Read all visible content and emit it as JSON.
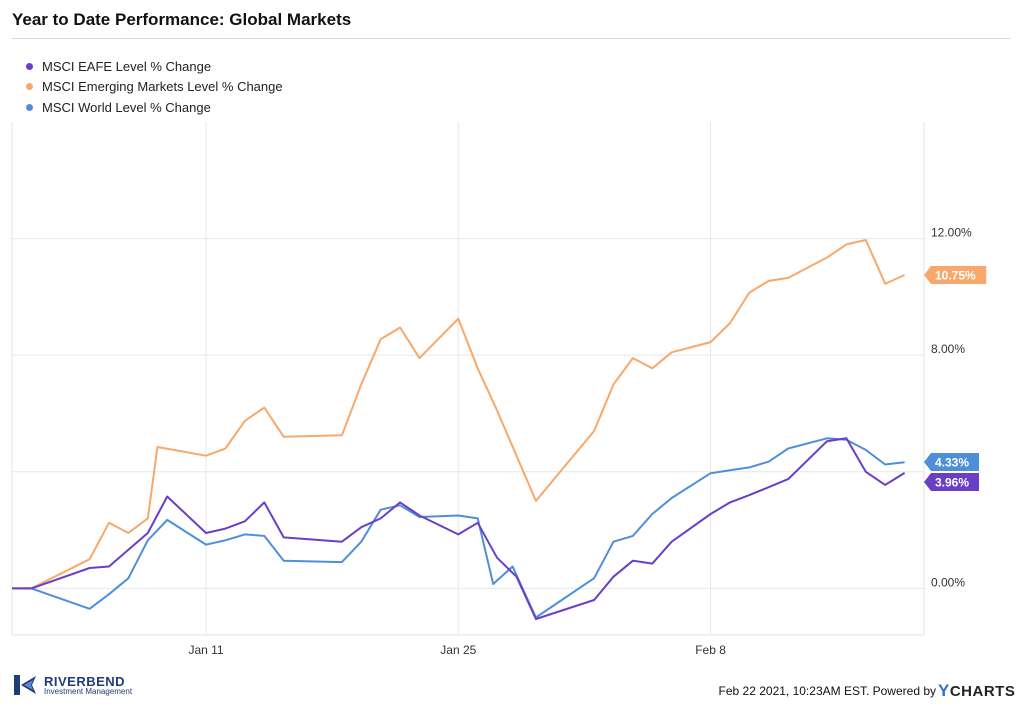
{
  "title": "Year to Date Performance: Global Markets",
  "chart_data": {
    "type": "line",
    "ylim": [
      -1.6,
      16.0
    ],
    "yticks": [
      0,
      4,
      8,
      12
    ],
    "ytick_labels": [
      "0.00%",
      "",
      "8.00%",
      "12.00%"
    ],
    "x_range": [
      0,
      47
    ],
    "xticks": [
      10,
      23,
      36
    ],
    "xtick_labels": [
      "Jan 11",
      "Jan 25",
      "Feb 8"
    ],
    "grid": true,
    "legend_position": "top-left",
    "series": [
      {
        "name": "MSCI EAFE Level % Change",
        "color": "#6a3fc7",
        "end_label": "3.96%",
        "end_value": 3.96,
        "points": [
          [
            0,
            0
          ],
          [
            1,
            0
          ],
          [
            4,
            0.7
          ],
          [
            5,
            0.75
          ],
          [
            7,
            1.9
          ],
          [
            8,
            3.15
          ],
          [
            10,
            1.9
          ],
          [
            11,
            2.05
          ],
          [
            12,
            2.3
          ],
          [
            13,
            2.95
          ],
          [
            14,
            1.75
          ],
          [
            17,
            1.6
          ],
          [
            18,
            2.1
          ],
          [
            19,
            2.4
          ],
          [
            20,
            2.95
          ],
          [
            21,
            2.5
          ],
          [
            23,
            1.85
          ],
          [
            24,
            2.25
          ],
          [
            25,
            1.05
          ],
          [
            26,
            0.4
          ],
          [
            27,
            -1.05
          ],
          [
            30,
            -0.4
          ],
          [
            31,
            0.4
          ],
          [
            32,
            0.95
          ],
          [
            33,
            0.85
          ],
          [
            34,
            1.6
          ],
          [
            36,
            2.55
          ],
          [
            37,
            2.95
          ],
          [
            38,
            3.2
          ],
          [
            40,
            3.75
          ],
          [
            42,
            5.05
          ],
          [
            43,
            5.15
          ],
          [
            44,
            4.0
          ],
          [
            45,
            3.55
          ],
          [
            46,
            3.96
          ]
        ]
      },
      {
        "name": "MSCI Emerging Markets Level % Change",
        "color": "#f7a86a",
        "end_label": "10.75%",
        "end_value": 10.75,
        "points": [
          [
            0,
            0
          ],
          [
            1,
            0
          ],
          [
            4,
            1.0
          ],
          [
            5,
            2.25
          ],
          [
            6,
            1.9
          ],
          [
            7,
            2.4
          ],
          [
            7.5,
            4.85
          ],
          [
            10,
            4.55
          ],
          [
            11,
            4.8
          ],
          [
            12,
            5.75
          ],
          [
            13,
            6.2
          ],
          [
            14,
            5.2
          ],
          [
            17,
            5.25
          ],
          [
            18,
            7.0
          ],
          [
            19,
            8.55
          ],
          [
            20,
            8.95
          ],
          [
            21,
            7.9
          ],
          [
            23,
            9.25
          ],
          [
            24,
            7.55
          ],
          [
            25,
            6.1
          ],
          [
            27,
            3.0
          ],
          [
            30,
            5.4
          ],
          [
            31,
            7.0
          ],
          [
            32,
            7.9
          ],
          [
            33,
            7.55
          ],
          [
            34,
            8.1
          ],
          [
            36,
            8.45
          ],
          [
            37,
            9.1
          ],
          [
            38,
            10.15
          ],
          [
            39,
            10.55
          ],
          [
            40,
            10.65
          ],
          [
            42,
            11.35
          ],
          [
            43,
            11.8
          ],
          [
            44,
            11.95
          ],
          [
            45,
            10.45
          ],
          [
            46,
            10.75
          ]
        ]
      },
      {
        "name": "MSCI World Level % Change",
        "color": "#4f8fd9",
        "end_label": "4.33%",
        "end_value": 4.33,
        "points": [
          [
            0,
            0
          ],
          [
            1,
            0
          ],
          [
            4,
            -0.7
          ],
          [
            5,
            -0.2
          ],
          [
            6,
            0.35
          ],
          [
            7,
            1.65
          ],
          [
            8,
            2.35
          ],
          [
            10,
            1.5
          ],
          [
            11,
            1.65
          ],
          [
            12,
            1.85
          ],
          [
            13,
            1.8
          ],
          [
            14,
            0.95
          ],
          [
            17,
            0.9
          ],
          [
            18,
            1.6
          ],
          [
            19,
            2.7
          ],
          [
            20,
            2.85
          ],
          [
            21,
            2.45
          ],
          [
            23,
            2.5
          ],
          [
            24,
            2.4
          ],
          [
            24.8,
            0.15
          ],
          [
            25.8,
            0.75
          ],
          [
            27,
            -1.0
          ],
          [
            30,
            0.35
          ],
          [
            31,
            1.6
          ],
          [
            32,
            1.8
          ],
          [
            33,
            2.55
          ],
          [
            34,
            3.1
          ],
          [
            36,
            3.95
          ],
          [
            37,
            4.05
          ],
          [
            38,
            4.15
          ],
          [
            39,
            4.35
          ],
          [
            40,
            4.8
          ],
          [
            42,
            5.15
          ],
          [
            43,
            5.1
          ],
          [
            44,
            4.75
          ],
          [
            45,
            4.25
          ],
          [
            46,
            4.33
          ]
        ]
      }
    ]
  },
  "footer": {
    "timestamp_text": "Feb 22 2021, 10:23AM EST. Powered by",
    "brand_y": "Y",
    "brand_rest": "CHARTS",
    "logo_name": "RIVERBEND",
    "logo_sub": "Investment Management"
  }
}
